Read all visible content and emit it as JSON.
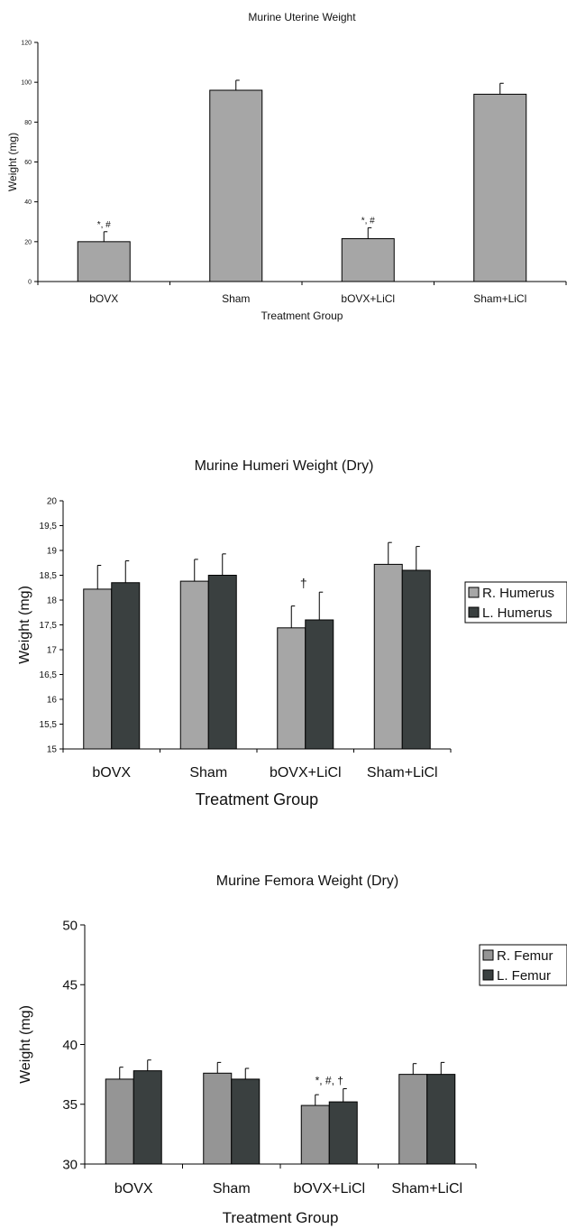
{
  "chart_data": [
    {
      "type": "bar",
      "title": "Murine Uterine Weight",
      "xlabel": "Treatment Group",
      "ylabel": "Weight (mg)",
      "ylim": [
        0,
        120
      ],
      "yticks": [
        "0",
        "20",
        "40",
        "60",
        "80",
        "100",
        "120"
      ],
      "categories": [
        "bOVX",
        "Sham",
        "bOVX+LiCl",
        "Sham+LiCl"
      ],
      "series": [
        {
          "name": "",
          "values": [
            20,
            96,
            21.5,
            94
          ],
          "errors": [
            5,
            5,
            5.5,
            5.5
          ],
          "color": "#a6a6a6"
        }
      ],
      "annotations": [
        "*, #",
        "",
        "*, #",
        ""
      ],
      "legend": null
    },
    {
      "type": "bar",
      "title": "Murine Humeri Weight (Dry)",
      "xlabel": "Treatment Group",
      "ylabel": "Weight (mg)",
      "ylim": [
        15,
        20
      ],
      "yticks": [
        "15",
        "15,5",
        "16",
        "16,5",
        "17",
        "17,5",
        "18",
        "18,5",
        "19",
        "19,5",
        "20"
      ],
      "categories": [
        "bOVX",
        "Sham",
        "bOVX+LiCl",
        "Sham+LiCl"
      ],
      "series": [
        {
          "name": "R. Humerus",
          "values": [
            18.22,
            18.38,
            17.44,
            18.72
          ],
          "errors": [
            0.48,
            0.44,
            0.44,
            0.44
          ],
          "color": "#a6a6a6"
        },
        {
          "name": "L. Humerus",
          "values": [
            18.35,
            18.5,
            17.6,
            18.6
          ],
          "errors": [
            0.44,
            0.43,
            0.56,
            0.48
          ],
          "color": "#3a4040"
        }
      ],
      "annotations": [
        "",
        "",
        "†",
        ""
      ],
      "legend": "right"
    },
    {
      "type": "bar",
      "title": "Murine Femora Weight (Dry)",
      "xlabel": "Treatment Group",
      "ylabel": "Weight (mg)",
      "ylim": [
        30,
        50
      ],
      "yticks": [
        "30",
        "35",
        "40",
        "45",
        "50"
      ],
      "categories": [
        "bOVX",
        "Sham",
        "bOVX+LiCl",
        "Sham+LiCl"
      ],
      "series": [
        {
          "name": "R. Femur",
          "values": [
            37.1,
            37.6,
            34.9,
            37.5
          ],
          "errors": [
            1.0,
            0.9,
            0.9,
            0.9
          ],
          "color": "#959595"
        },
        {
          "name": "L. Femur",
          "values": [
            37.8,
            37.1,
            35.2,
            37.5
          ],
          "errors": [
            0.9,
            0.9,
            1.1,
            1.0
          ],
          "color": "#3a4040"
        }
      ],
      "annotations": [
        "",
        "",
        "*, #, †",
        ""
      ],
      "legend": "right"
    }
  ]
}
